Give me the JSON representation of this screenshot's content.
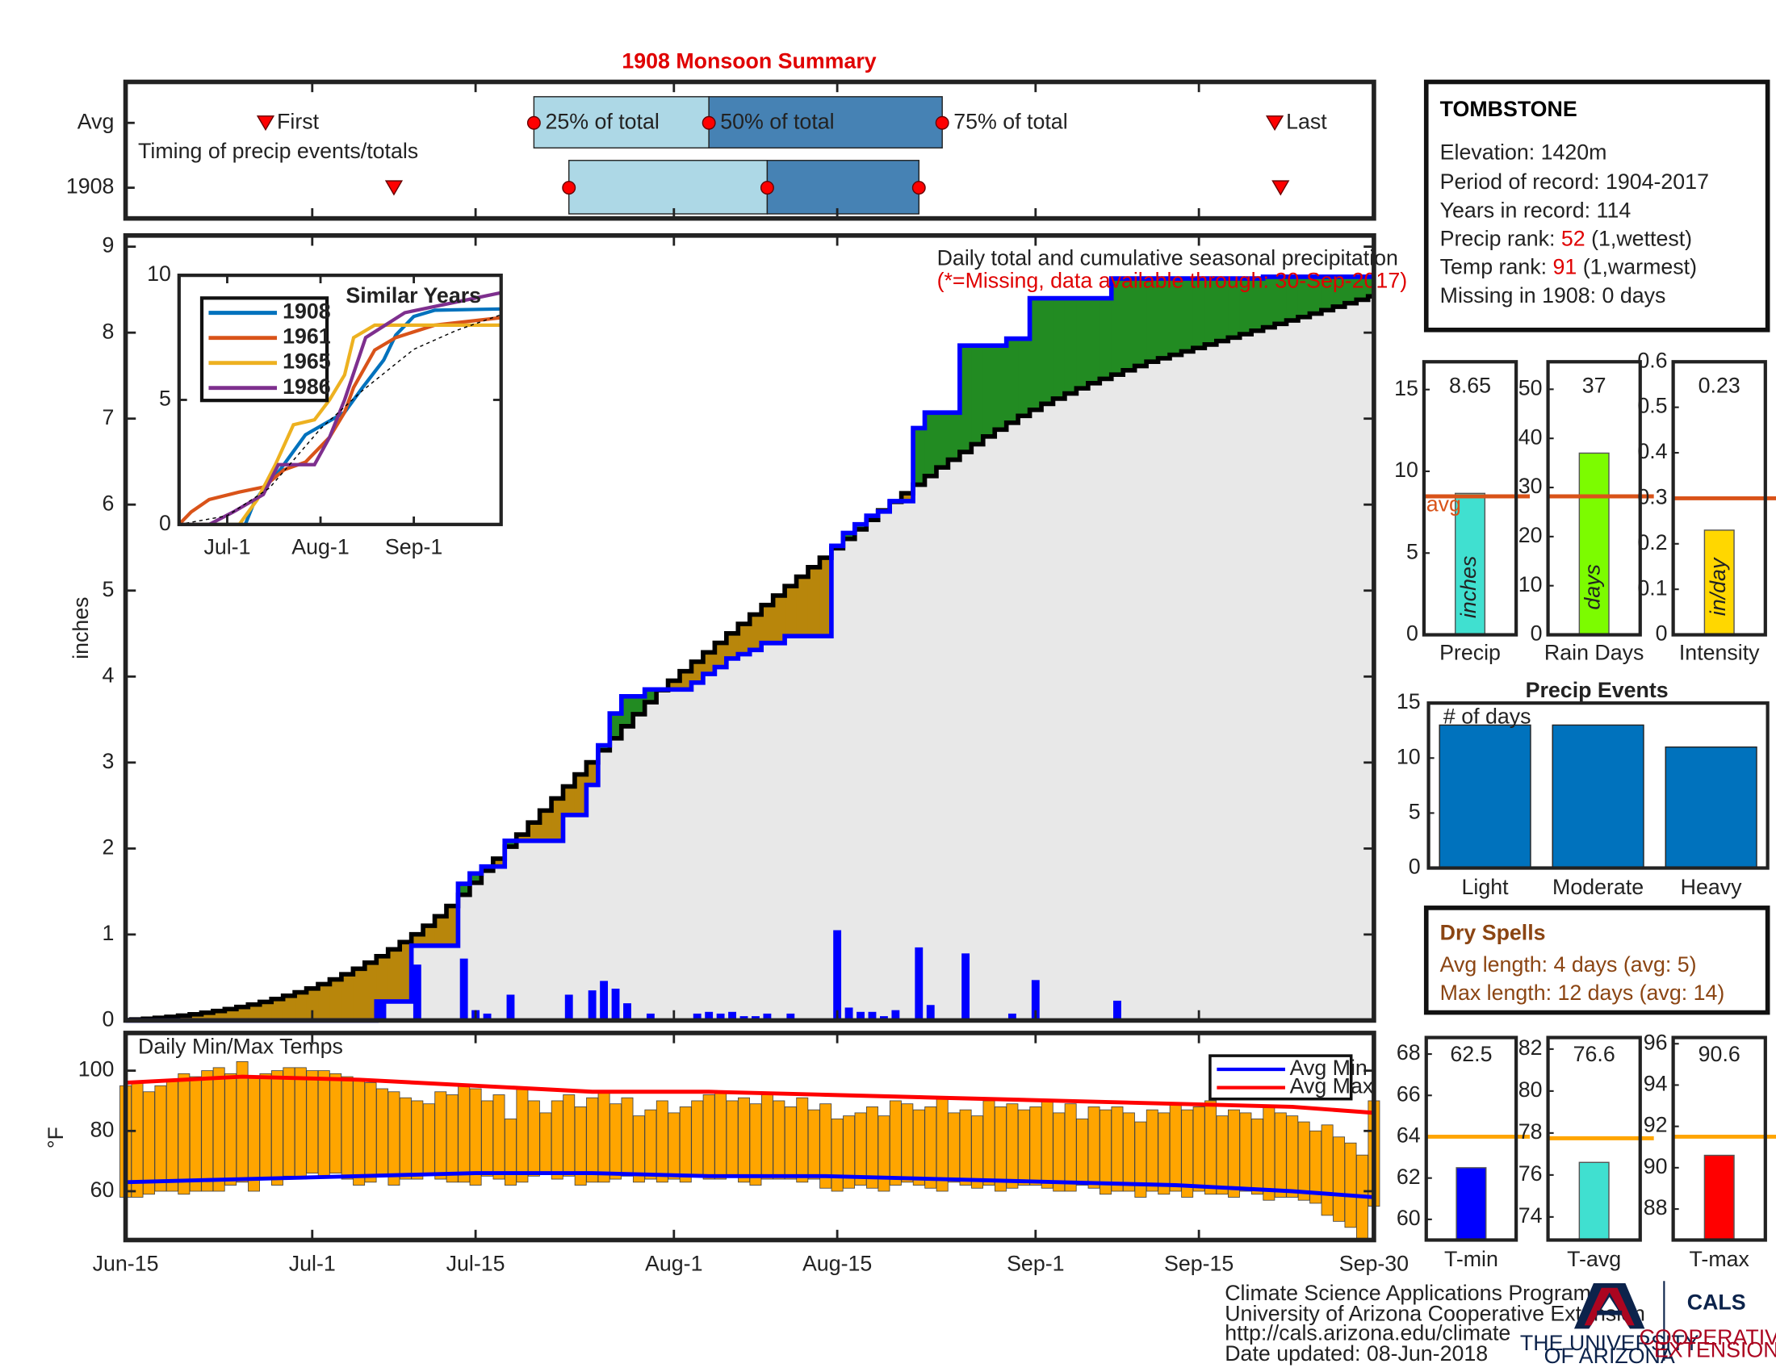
{
  "title": "1908 Monsoon Summary",
  "chart_data": [
    {
      "type": "timing",
      "annotation": "Timing of precip events/totals",
      "labels": {
        "first": "First",
        "q25": "25% of total",
        "q50": "50% of total",
        "q75": "75% of total",
        "last": "Last"
      },
      "xlim": [
        0,
        107
      ],
      "light_color": "#add8e6",
      "dark_color": "#4682b4",
      "marker_color": "#ff0000",
      "series": [
        {
          "name": "Avg",
          "first": 12,
          "q25": 35,
          "q50": 50,
          "q75": 70,
          "last": 98.5
        },
        {
          "name": "1908",
          "first": 23,
          "q25": 38,
          "q50": 55,
          "q75": 68,
          "last": 99
        }
      ]
    },
    {
      "type": "cumulative_precip",
      "annotation": "Daily total and cumulative seasonal precipitation",
      "note": "(*=Missing, data available through: 30-Sep-2017)",
      "ylabel": "inches",
      "xlim": [
        0,
        107
      ],
      "ylim": [
        0,
        9.13
      ],
      "yticks": [
        0,
        1,
        2,
        3,
        4,
        5,
        6,
        7,
        8,
        9
      ],
      "surplus_color": "#228b22",
      "deficit_color": "#b8860b",
      "base_color": "#e8e8e8",
      "series": [
        {
          "name": "1908",
          "color": "#0000ff",
          "values": [
            0,
            0,
            0,
            0,
            0,
            0,
            0,
            0,
            0,
            0,
            0,
            0,
            0,
            0,
            0,
            0,
            0,
            0,
            0,
            0,
            0,
            0,
            0.22,
            0,
            0,
            0.65,
            0,
            0,
            0,
            0.72,
            0.12,
            0.08,
            0,
            0.3,
            0,
            0,
            0,
            0,
            0.3,
            0,
            0.35,
            0.46,
            0.37,
            0.2,
            0,
            0.08,
            0,
            0,
            0,
            0.08,
            0.1,
            0.08,
            0.1,
            0.05,
            0.05,
            0.08,
            0,
            0.08,
            0,
            0,
            0,
            1.05,
            0.15,
            0.1,
            0.1,
            0.05,
            0.12,
            0,
            0.85,
            0.18,
            0,
            0,
            0.78,
            0,
            0,
            0,
            0.08,
            0,
            0.47,
            0,
            0,
            0,
            0,
            0,
            0,
            0.23,
            0,
            0,
            0,
            0,
            0,
            0,
            0,
            0,
            0,
            0,
            0,
            0,
            0.02,
            0,
            0,
            0,
            0,
            0,
            0,
            0,
            0,
            0
          ]
        },
        {
          "color": "#000000",
          "values": [
            0.005,
            0.007,
            0.008,
            0.01,
            0.012,
            0.014,
            0.016,
            0.018,
            0.02,
            0.022,
            0.025,
            0.028,
            0.031,
            0.034,
            0.037,
            0.04,
            0.045,
            0.05,
            0.055,
            0.06,
            0.065,
            0.07,
            0.075,
            0.08,
            0.085,
            0.09,
            0.1,
            0.11,
            0.12,
            0.13,
            0.14,
            0.14,
            0.14,
            0.14,
            0.14,
            0.14,
            0.14,
            0.14,
            0.14,
            0.14,
            0.14,
            0.14,
            0.14,
            0.14,
            0.14,
            0.14,
            0.14,
            0.11,
            0.11,
            0.11,
            0.11,
            0.11,
            0.11,
            0.11,
            0.11,
            0.11,
            0.11,
            0.11,
            0.11,
            0.11,
            0.11,
            0.11,
            0.11,
            0.11,
            0.11,
            0.11,
            0.1,
            0.1,
            0.1,
            0.1,
            0.1,
            0.09,
            0.09,
            0.09,
            0.09,
            0.08,
            0.08,
            0.08,
            0.07,
            0.07,
            0.06,
            0.06,
            0.06,
            0.06,
            0.05,
            0.05,
            0.05,
            0.05,
            0.05,
            0.04,
            0.04,
            0.04,
            0.04,
            0.04,
            0.04,
            0.04,
            0.04,
            0.04,
            0.04,
            0.04,
            0.04,
            0.04,
            0.04,
            0.04,
            0.04,
            0.04,
            0.04,
            0.04
          ]
        }
      ]
    },
    {
      "type": "line",
      "title": "Similar Years",
      "xlim": [
        0,
        107
      ],
      "ylim": [
        0,
        10
      ],
      "yticks": [
        0,
        5,
        10
      ],
      "xticks": [
        {
          "value": 16,
          "label": "Jul-1"
        },
        {
          "value": 47,
          "label": "Aug-1"
        },
        {
          "value": 78,
          "label": "Sep-1"
        }
      ],
      "series": [
        {
          "name": "1908",
          "color": "#0072bd",
          "x": [
            0,
            22,
            25,
            29,
            33,
            42,
            55,
            61,
            68,
            72,
            78,
            85,
            107
          ],
          "values": [
            0,
            0,
            0.9,
            1.6,
            2.1,
            3.6,
            4.5,
            5.5,
            6.6,
            7.6,
            8.35,
            8.6,
            8.65
          ]
        },
        {
          "name": "1961",
          "color": "#d95319",
          "x": [
            0,
            4,
            10,
            20,
            28,
            35,
            42,
            50,
            55,
            58,
            65,
            72,
            85,
            107
          ],
          "values": [
            0,
            0.5,
            1,
            1.3,
            1.5,
            2.2,
            2.5,
            3.5,
            4.5,
            5.5,
            7,
            7.5,
            8,
            8.3
          ]
        },
        {
          "name": "1965",
          "color": "#edb120",
          "x": [
            0,
            20,
            26,
            32,
            38,
            45,
            50,
            55,
            58,
            65,
            107
          ],
          "values": [
            0,
            0,
            1,
            2.4,
            4,
            4.2,
            5,
            6,
            7.5,
            8,
            8
          ]
        },
        {
          "name": "1986",
          "color": "#7e2f8e",
          "x": [
            0,
            10,
            18,
            28,
            33,
            45,
            50,
            55,
            62,
            75,
            95,
            107
          ],
          "values": [
            0,
            0,
            0.5,
            1.2,
            2.4,
            2.4,
            3.5,
            5,
            7.5,
            8.5,
            9,
            9.3
          ]
        },
        {
          "color": "#000000",
          "dashed": true,
          "x": [
            0,
            16,
            30,
            47,
            61,
            78,
            92,
            107
          ],
          "values": [
            0,
            0.35,
            1.46,
            3.84,
            5.38,
            7.03,
            7.78,
            8.42
          ]
        }
      ]
    },
    {
      "type": "bar",
      "categories": [
        "Precip"
      ],
      "values": [
        8.65
      ],
      "bar_label": "inches",
      "avg": 8.47,
      "avg_label": "avg",
      "avg_color": "#d95319",
      "color": "#40e0d0",
      "ylim": [
        0,
        16.7
      ],
      "yticks": [
        0,
        5,
        10,
        15
      ]
    },
    {
      "type": "bar",
      "categories": [
        "Rain Days"
      ],
      "values": [
        37
      ],
      "bar_label": "days",
      "avg": 28.2,
      "avg_color": "#d95319",
      "color": "#7cfc00",
      "ylim": [
        0,
        55.6
      ],
      "yticks": [
        0,
        10,
        20,
        30,
        40,
        50
      ]
    },
    {
      "type": "bar",
      "categories": [
        "Intensity"
      ],
      "values": [
        0.23
      ],
      "bar_label": "in/day",
      "avg": 0.3,
      "avg_color": "#d95319",
      "color": "#ffd700",
      "ylim": [
        0,
        0.6
      ],
      "yticks": [
        0,
        0.1,
        0.2,
        0.3,
        0.4,
        0.5,
        0.6
      ]
    },
    {
      "type": "bar",
      "title": "Precip Events",
      "annotation": "# of days",
      "categories": [
        "Light",
        "Moderate",
        "Heavy"
      ],
      "values": [
        13,
        13,
        11
      ],
      "color": "#0072bd",
      "ylim": [
        0,
        15
      ],
      "yticks": [
        0,
        5,
        10,
        15
      ]
    },
    {
      "type": "range_bar",
      "annotation": "Daily Min/Max Temps",
      "ylabel": "°F",
      "xlim": [
        0,
        107
      ],
      "ylim": [
        43.8,
        112.5
      ],
      "yticks": [
        60,
        80,
        100
      ],
      "xticks": [
        {
          "value": 0,
          "label": "Jun-15"
        },
        {
          "value": 16,
          "label": "Jul-1"
        },
        {
          "value": 30,
          "label": "Jul-15"
        },
        {
          "value": 47,
          "label": "Aug-1"
        },
        {
          "value": 61,
          "label": "Aug-15"
        },
        {
          "value": 78,
          "label": "Sep-1"
        },
        {
          "value": 92,
          "label": "Sep-15"
        },
        {
          "value": 107,
          "label": "Sep-30"
        }
      ],
      "legend": "upper right",
      "bars": {
        "color": "#ffa500",
        "high": [
          95,
          96,
          93,
          95,
          97,
          99,
          98,
          100,
          101,
          99,
          103,
          98,
          99,
          100,
          101,
          101,
          100,
          100,
          99,
          98,
          97,
          96,
          94,
          93,
          91,
          90,
          89,
          93,
          92,
          95,
          94,
          90,
          92,
          84,
          94,
          90,
          86,
          90,
          92,
          88,
          91,
          93,
          89,
          91,
          85,
          87,
          90,
          86,
          88,
          90,
          92,
          93,
          90,
          91,
          89,
          92,
          90,
          88,
          91,
          87,
          89,
          84,
          85,
          86,
          88,
          85,
          90,
          89,
          87,
          88,
          91,
          86,
          87,
          85,
          90,
          88,
          89,
          87,
          88,
          90,
          86,
          89,
          84,
          88,
          87,
          88,
          86,
          83,
          87,
          86,
          89,
          87,
          88,
          90,
          85,
          87,
          86,
          84,
          88,
          86,
          85,
          83,
          80,
          82,
          78,
          76,
          72,
          90
        ],
        "low": [
          58,
          58,
          59,
          60,
          60,
          59,
          60,
          60,
          60,
          62,
          63,
          60,
          64,
          62,
          65,
          64,
          66,
          65,
          66,
          64,
          62,
          63,
          65,
          62,
          64,
          64,
          66,
          64,
          63,
          63,
          62,
          65,
          64,
          62,
          63,
          65,
          66,
          64,
          65,
          62,
          63,
          63,
          64,
          65,
          63,
          64,
          63,
          64,
          63,
          65,
          64,
          64,
          65,
          63,
          62,
          64,
          64,
          64,
          63,
          64,
          61,
          60,
          61,
          62,
          61,
          60,
          62,
          63,
          62,
          61,
          60,
          63,
          62,
          61,
          62,
          60,
          61,
          62,
          62,
          61,
          60,
          60,
          62,
          61,
          59,
          60,
          60,
          58,
          60,
          59,
          60,
          58,
          60,
          59,
          59,
          58,
          60,
          59,
          57,
          58,
          58,
          57,
          56,
          52,
          50,
          48,
          44,
          55
        ]
      },
      "series": [
        {
          "name": "Avg Min",
          "color": "#0000ff",
          "x": [
            0,
            10,
            20,
            30,
            40,
            50,
            60,
            70,
            80,
            90,
            100,
            107
          ],
          "values": [
            63,
            64,
            65,
            66,
            66,
            65,
            65,
            64,
            63,
            62,
            60,
            58
          ]
        },
        {
          "name": "Avg Max",
          "color": "#ff0000",
          "x": [
            0,
            10,
            20,
            30,
            40,
            50,
            60,
            70,
            80,
            90,
            100,
            107
          ],
          "values": [
            96,
            98,
            97,
            95,
            93,
            93,
            92,
            91,
            90,
            89,
            88,
            86
          ]
        }
      ]
    },
    {
      "type": "bar",
      "categories": [
        "T-min"
      ],
      "values": [
        62.5
      ],
      "avg": 64,
      "avg_color": "#ffa500",
      "color": "#0000ff",
      "ylim": [
        59,
        68.8
      ],
      "yticks": [
        60,
        62,
        64,
        66,
        68
      ]
    },
    {
      "type": "bar",
      "categories": [
        "T-avg"
      ],
      "values": [
        76.6
      ],
      "avg": 77.75,
      "avg_color": "#ffa500",
      "color": "#40e0d0",
      "ylim": [
        72.9,
        82.55
      ],
      "yticks": [
        74,
        76,
        78,
        80,
        82
      ]
    },
    {
      "type": "bar",
      "categories": [
        "T-max"
      ],
      "values": [
        90.6
      ],
      "avg": 91.5,
      "avg_color": "#ffa500",
      "color": "#ff0000",
      "ylim": [
        86.5,
        96.3
      ],
      "yticks": [
        88,
        90,
        92,
        94,
        96
      ]
    }
  ],
  "station": {
    "name": "TOMBSTONE",
    "lines": [
      "Elevation: 1420m",
      "Period of record: 1904-2017",
      "Years in record: 114"
    ],
    "precip_rank": {
      "label": "Precip rank: ",
      "value": 52,
      "note": " (1,wettest)"
    },
    "temp_rank": {
      "label": "Temp rank: ",
      "value": 91,
      "note": " (1,warmest)"
    },
    "missing": "Missing in 1908: 0 days"
  },
  "dry_spells": {
    "title": "Dry Spells",
    "lines": [
      "Avg length: 4 days (avg: 5)",
      "Max length: 12 days (avg: 14)"
    ]
  },
  "footer": [
    "Climate Science Applications Program",
    "University of Arizona Cooperative Extension",
    "http://cals.arizona.edu/climate",
    " Date updated: 08-Jun-2018"
  ],
  "logo": {
    "university": [
      "THE UNIVERSITY",
      "OF ARIZONA"
    ],
    "cals": "CALS",
    "extension": [
      "COOPERATIVE",
      "EXTENSION"
    ]
  }
}
